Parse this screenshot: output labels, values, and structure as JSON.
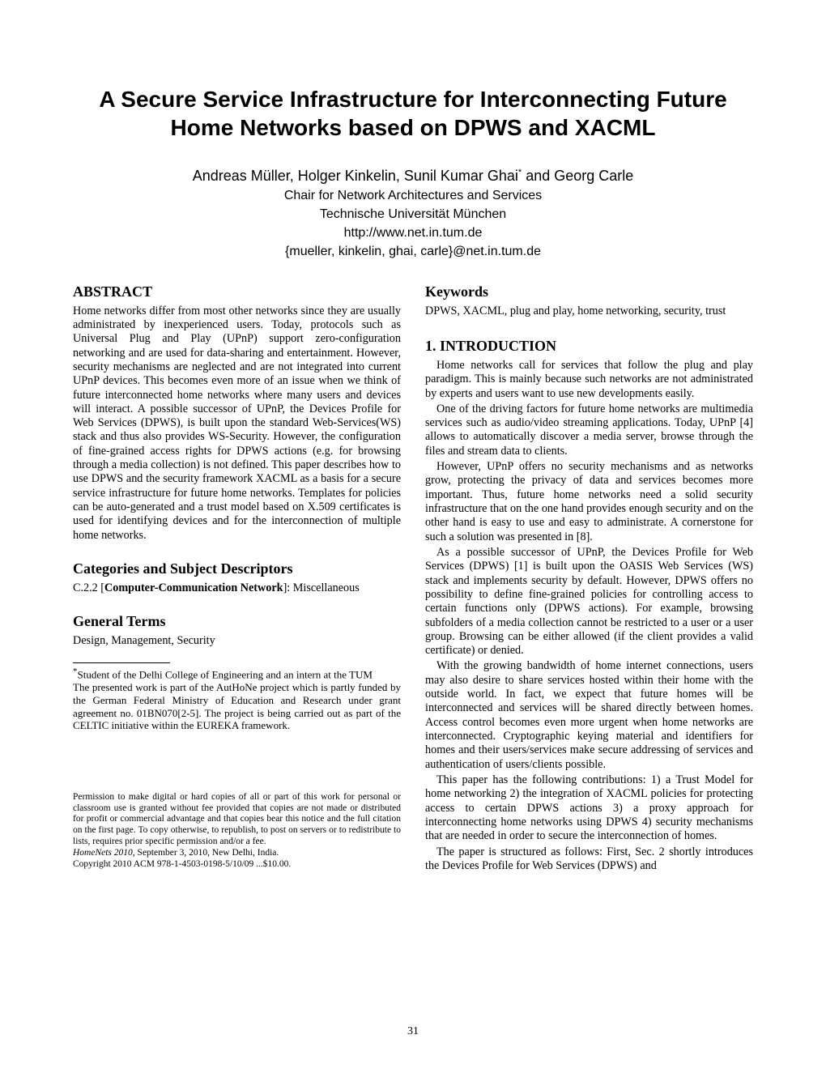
{
  "title_line1": "A Secure Service Infrastructure for Interconnecting Future",
  "title_line2": "Home Networks based on DPWS and XACML",
  "authors_names": "Andreas Müller, Holger Kinkelin, Sunil Kumar Ghai",
  "authors_after_star": " and Georg Carle",
  "affil1": "Chair for Network Architectures and Services",
  "affil2": "Technische Universität München",
  "affil_url": "http://www.net.in.tum.de",
  "affil_email": "{mueller, kinkelin, ghai, carle}@net.in.tum.de",
  "h_abstract": "ABSTRACT",
  "abstract": "Home networks differ from most other networks since they are usually administrated by inexperienced users. Today, protocols such as Universal Plug and Play (UPnP) support zero-configuration networking and are used for data-sharing and entertainment. However, security mechanisms are neglected and are not integrated into current UPnP devices. This becomes even more of an issue when we think of future interconnected home networks where many users and devices will interact. A possible successor of UPnP, the Devices Profile for Web Services (DPWS), is built upon the standard Web-Services(WS) stack and thus also provides WS-Security. However, the configuration of fine-grained access rights for DPWS actions (e.g. for browsing through a media collection) is not defined. This paper describes how to use DPWS and the security framework XACML as a basis for a secure service infrastructure for future home networks. Templates for policies can be auto-generated and a trust model based on X.509 certificates is used for identifying devices and for the interconnection of multiple home networks.",
  "h_categories": "Categories and Subject Descriptors",
  "cat_code": "C.2.2 [",
  "cat_bold": "Computer-Communication Network",
  "cat_rest": "]: Miscellaneous",
  "h_general": "General Terms",
  "general_terms": "Design, Management, Security",
  "fn_star": "Student of the Delhi College of Engineering and an intern at the TUM",
  "fn_project": "The presented work is part of the AutHoNe project which is partly funded by the German Federal Ministry of Education and Research under grant agreement no. 01BN070[2-5]. The project is being carried out as part of the CELTIC initiative within the EUREKA framework.",
  "perm_text": "Permission to make digital or hard copies of all or part of this work for personal or classroom use is granted without fee provided that copies are not made or distributed for profit or commercial advantage and that copies bear this notice and the full citation on the first page. To copy otherwise, to republish, to post on servers or to redistribute to lists, requires prior specific permission and/or a fee.",
  "perm_venue": "HomeNets 2010,",
  "perm_venue_rest": " September 3, 2010, New Delhi, India.",
  "perm_copyright": "Copyright 2010 ACM 978-1-4503-0198-5/10/09 ...$10.00.",
  "h_keywords": "Keywords",
  "keywords": "DPWS, XACML, plug and play, home networking, security, trust",
  "h_intro": "1.   INTRODUCTION",
  "intro_p1": "Home networks call for services that follow the plug and play paradigm. This is mainly because such networks are not administrated by experts and users want to use new developments easily.",
  "intro_p2": "One of the driving factors for future home networks are multimedia services such as audio/video streaming applications. Today, UPnP [4] allows to automatically discover a media server, browse through the files and stream data to clients.",
  "intro_p3": "However, UPnP offers no security mechanisms and as networks grow, protecting the privacy of data and services becomes more important. Thus, future home networks need a solid security infrastructure that on the one hand provides enough security and on the other hand is easy to use and easy to administrate. A cornerstone for such a solution was presented in [8].",
  "intro_p4": "As a possible successor of UPnP, the Devices Profile for Web Services (DPWS) [1] is built upon the OASIS Web Services (WS) stack and implements security by default. However, DPWS offers no possibility to define fine-grained policies for controlling access to certain functions only (DPWS actions). For example, browsing subfolders of a media collection cannot be restricted to a user or a user group. Browsing can be either allowed (if the client provides a valid certificate) or denied.",
  "intro_p5": "With the growing bandwidth of home internet connections, users may also desire to share services hosted within their home with the outside world. In fact, we expect that future homes will be interconnected and services will be shared directly between homes. Access control becomes even more urgent when home networks are interconnected. Cryptographic keying material and identifiers for homes and their users/services make secure addressing of services and authentication of users/clients possible.",
  "intro_p6": "This paper has the following contributions: 1) a Trust Model for home networking 2) the integration of XACML policies for protecting access to certain DPWS actions 3) a proxy approach for interconnecting home networks using DPWS 4) security mechanisms that are needed in order to secure the interconnection of homes.",
  "intro_p7": "The paper is structured as follows: First, Sec. 2 shortly introduces the Devices Profile for Web Services (DPWS) and",
  "page_number": "31",
  "star": "*"
}
